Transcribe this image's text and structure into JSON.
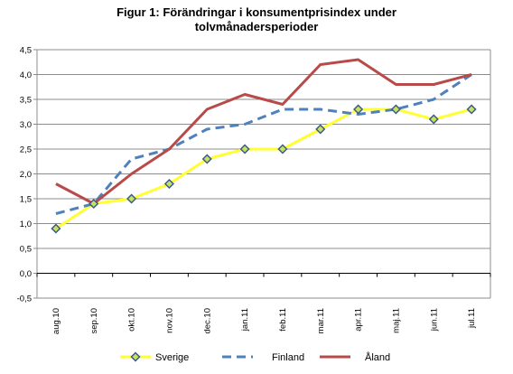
{
  "chart_data": {
    "type": "line",
    "title_line1": "Figur 1: Förändringar i konsumentprisindex  under",
    "title_line2": "tolvmånadersperioder",
    "categories": [
      "aug.10",
      "sep.10",
      "okt.10",
      "nov.10",
      "dec.10",
      "jan.11",
      "feb.11",
      "mar.11",
      "apr.11",
      "maj.11",
      "jun.11",
      "jul.11"
    ],
    "ylim": [
      -0.5,
      4.5
    ],
    "yticks": [
      "-0,5",
      "0,0",
      "0,5",
      "1,0",
      "1,5",
      "2,0",
      "2,5",
      "3,0",
      "3,5",
      "4,0",
      "4,5"
    ],
    "grid": true,
    "legend_position": "bottom",
    "series": [
      {
        "name": "Sverige",
        "color": "#FFFF33",
        "marker_fill": "#C8E060",
        "marker_edge": "#3A5A8A",
        "style": "solid-with-diamonds",
        "values": [
          0.9,
          1.4,
          1.5,
          1.8,
          2.3,
          2.5,
          2.5,
          2.9,
          3.3,
          3.3,
          3.1,
          3.3
        ]
      },
      {
        "name": "Finland",
        "color": "#4F81BD",
        "style": "dashed",
        "values": [
          1.2,
          1.4,
          2.3,
          2.5,
          2.9,
          3.0,
          3.3,
          3.3,
          3.2,
          3.3,
          3.5,
          4.0
        ]
      },
      {
        "name": "Åland",
        "color": "#B84A4A",
        "style": "solid",
        "values": [
          1.8,
          1.4,
          2.0,
          2.5,
          3.3,
          3.6,
          3.4,
          4.2,
          4.3,
          3.8,
          3.8,
          4.0
        ]
      }
    ]
  }
}
